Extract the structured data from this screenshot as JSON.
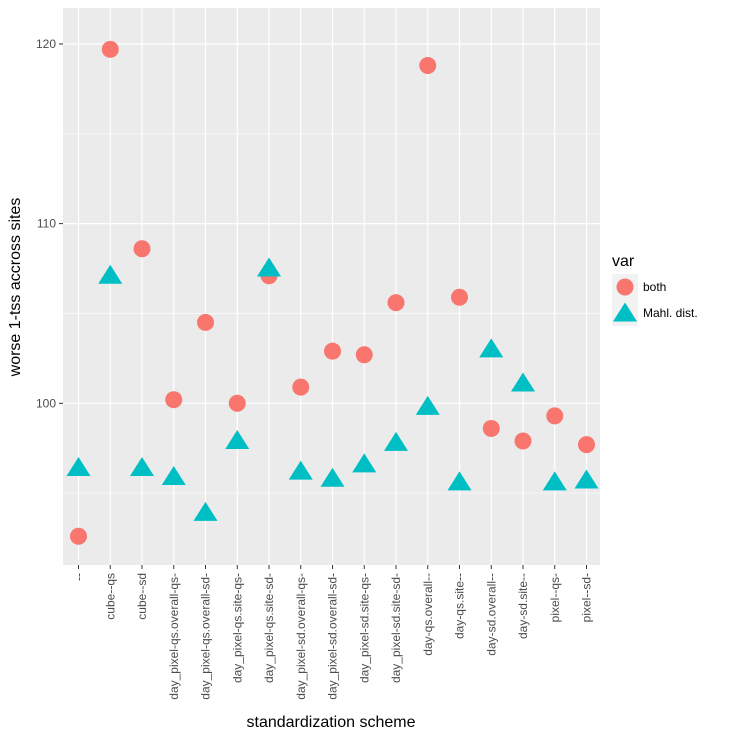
{
  "chart_data": {
    "type": "scatter",
    "title": "",
    "xlabel": "standardization scheme",
    "ylabel": "worse 1-tss accross sites",
    "ylim": [
      91.0,
      122.0
    ],
    "yticks": [
      100,
      110,
      120
    ],
    "grid": true,
    "legend_position": "right",
    "legend_title": "var",
    "categories": [
      "--",
      "cube--qs",
      "cube--sd",
      "day_pixel-qs.overall-qs-",
      "day_pixel-qs.overall-sd-",
      "day_pixel-qs.site-qs-",
      "day_pixel-qs.site-sd-",
      "day_pixel-sd.overall-qs-",
      "day_pixel-sd.overall-sd-",
      "day_pixel-sd.site-qs-",
      "day_pixel-sd.site-sd-",
      "day-qs.overall--",
      "day-qs.site--",
      "day-sd.overall--",
      "day-sd.site--",
      "pixel--qs-",
      "pixel--sd-"
    ],
    "series": [
      {
        "name": "both",
        "marker": "circle",
        "color": "#F8766D",
        "values": [
          92.6,
          119.7,
          108.6,
          100.2,
          104.5,
          100.0,
          107.1,
          100.9,
          102.9,
          102.7,
          105.6,
          118.8,
          105.9,
          98.6,
          97.9,
          99.3,
          97.7
        ]
      },
      {
        "name": "Mahl. dist.",
        "marker": "triangle",
        "color": "#00BFC4",
        "values": [
          96.4,
          107.1,
          96.4,
          95.9,
          93.9,
          97.9,
          107.5,
          96.2,
          95.8,
          96.6,
          97.8,
          99.8,
          95.6,
          103.0,
          101.1,
          95.6,
          95.7
        ]
      }
    ]
  }
}
